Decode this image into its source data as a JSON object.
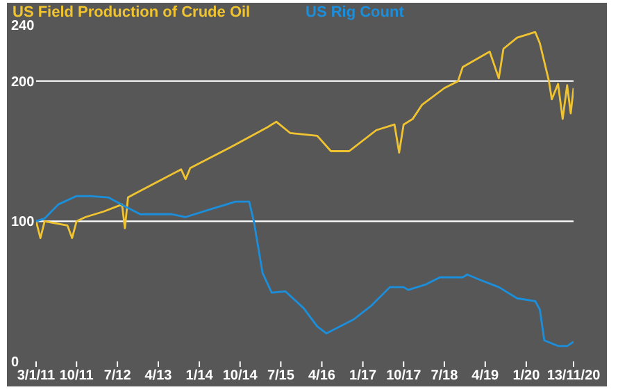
{
  "chart_data": {
    "type": "line",
    "legend": "top",
    "grid": "y",
    "xlim": [
      "2011-01-03",
      "2020-11-13"
    ],
    "xticks": [
      {
        "value": "2011-01-03",
        "label": "3/1/11"
      },
      {
        "value": "2011-10-01",
        "label": "10/11"
      },
      {
        "value": "2012-07-01",
        "label": "7/12"
      },
      {
        "value": "2013-04-01",
        "label": "4/13"
      },
      {
        "value": "2014-01-01",
        "label": "1/14"
      },
      {
        "value": "2014-10-01",
        "label": "10/14"
      },
      {
        "value": "2015-07-01",
        "label": "7/15"
      },
      {
        "value": "2016-04-01",
        "label": "4/16"
      },
      {
        "value": "2017-01-01",
        "label": "1/17"
      },
      {
        "value": "2017-10-01",
        "label": "10/17"
      },
      {
        "value": "2018-07-01",
        "label": "7/18"
      },
      {
        "value": "2019-04-01",
        "label": "4/19"
      },
      {
        "value": "2020-01-01",
        "label": "1/20"
      },
      {
        "value": "2020-11-13",
        "label": "13/11/20"
      }
    ],
    "ylim": [
      0,
      240
    ],
    "yticks": [
      0,
      100,
      200,
      240
    ],
    "series": [
      {
        "name": "US Field Production of Crude Oil",
        "color": "#f0c430",
        "x": [
          "2011-01-03",
          "2011-02",
          "2011-03",
          "2011-08",
          "2011-09",
          "2011-10",
          "2011-12",
          "2012-04",
          "2012-08-01",
          "2012-08-20",
          "2012-09-10",
          "2012-11",
          "2013-09",
          "2013-10",
          "2013-11",
          "2014-08",
          "2015-04",
          "2015-06",
          "2015-09",
          "2016-03",
          "2016-06",
          "2016-10",
          "2017-04",
          "2017-08",
          "2017-09",
          "2017-10",
          "2017-12",
          "2018-02",
          "2018-07",
          "2018-10",
          "2018-11",
          "2019-05",
          "2019-07",
          "2019-08",
          "2019-11",
          "2020-03",
          "2020-04",
          "2020-06",
          "2020-06-20",
          "2020-08",
          "2020-09",
          "2020-10",
          "2020-10-25",
          "2020-11-13"
        ],
        "values": [
          100,
          88,
          100,
          97,
          88,
          100,
          103,
          107,
          112,
          95,
          117,
          120,
          137,
          130,
          138,
          153,
          167,
          171,
          163,
          161,
          150,
          150,
          165,
          169,
          149,
          169,
          173,
          183,
          195,
          200,
          210,
          221,
          202,
          223,
          231,
          235,
          227,
          200,
          187,
          198,
          173,
          197,
          177,
          195
        ]
      },
      {
        "name": "US Rig Count",
        "color": "#1b8fdc",
        "x": [
          "2011-01-03",
          "2011-03",
          "2011-06",
          "2011-10",
          "2012-01",
          "2012-05",
          "2012-09",
          "2012-12",
          "2013-07",
          "2013-10",
          "2014-05",
          "2014-09",
          "2014-12",
          "2015-01",
          "2015-03",
          "2015-05",
          "2015-08",
          "2015-12",
          "2016-03",
          "2016-05",
          "2016-11",
          "2017-03",
          "2017-07",
          "2017-10",
          "2017-11",
          "2018-03",
          "2018-06",
          "2018-11",
          "2018-12",
          "2019-03",
          "2019-07",
          "2019-11",
          "2020-03",
          "2020-04",
          "2020-05",
          "2020-08",
          "2020-10",
          "2020-11-13"
        ],
        "values": [
          100,
          102,
          112,
          118,
          118,
          117,
          110,
          105,
          105,
          103,
          110,
          114,
          114,
          100,
          63,
          49,
          50,
          38,
          25,
          20,
          30,
          40,
          53,
          53,
          51,
          55,
          60,
          60,
          62,
          58,
          53,
          45,
          43,
          37,
          15,
          11,
          11,
          14
        ]
      }
    ]
  }
}
